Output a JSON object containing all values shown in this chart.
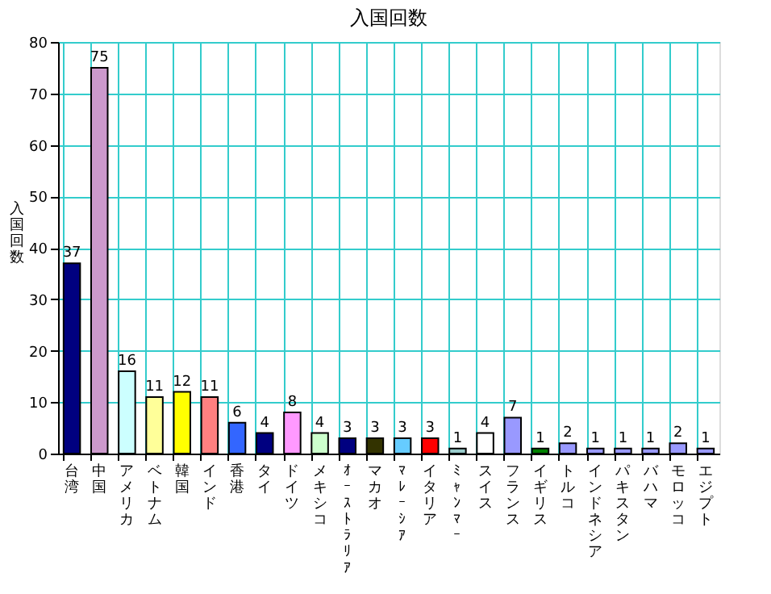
{
  "chart_data": {
    "type": "bar",
    "title": "入国回数",
    "ylabel": "入国回数",
    "categories": [
      "台湾",
      "中国",
      "アメリカ",
      "ベトナム",
      "韓国",
      "インド",
      "香港",
      "タイ",
      "ドイツ",
      "メキシコ",
      "ｵｰｽﾄﾗﾘｱ",
      "マカオ",
      "ﾏﾚｰｼｱ",
      "イタリア",
      "ﾐｬﾝﾏｰ",
      "スイス",
      "フランス",
      "イギリス",
      "トルコ",
      "インドネシア",
      "パキスタン",
      "バハマ",
      "モロッコ",
      "エジプト"
    ],
    "values": [
      37,
      75,
      16,
      11,
      12,
      11,
      6,
      4,
      8,
      4,
      3,
      3,
      3,
      3,
      1,
      4,
      7,
      1,
      2,
      1,
      1,
      1,
      2,
      1
    ],
    "colors": [
      "#000080",
      "#cc99cc",
      "#ccffff",
      "#ffff99",
      "#ffff00",
      "#ff8080",
      "#3366ff",
      "#000080",
      "#ff99ff",
      "#ccffcc",
      "#000080",
      "#333300",
      "#66ccff",
      "#ff0000",
      "#99cccc",
      "#ffffff",
      "#9999ff",
      "#008000",
      "#9999ff",
      "#9999ff",
      "#9999ff",
      "#9999ff",
      "#9999ff",
      "#9999ff"
    ],
    "ylim": [
      0,
      80
    ],
    "yticks": [
      0,
      10,
      20,
      30,
      40,
      50,
      60,
      70,
      80
    ],
    "grid": true,
    "data_labels": true
  }
}
